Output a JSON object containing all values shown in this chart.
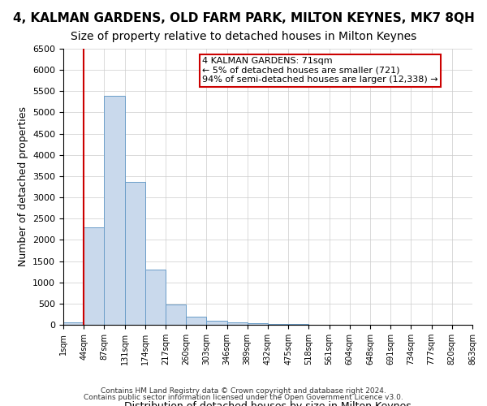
{
  "title": "4, KALMAN GARDENS, OLD FARM PARK, MILTON KEYNES, MK7 8QH",
  "subtitle": "Size of property relative to detached houses in Milton Keynes",
  "xlabel": "Distribution of detached houses by size in Milton Keynes",
  "ylabel": "Number of detached properties",
  "bin_labels": [
    "1sqm",
    "44sqm",
    "87sqm",
    "131sqm",
    "174sqm",
    "217sqm",
    "260sqm",
    "303sqm",
    "346sqm",
    "389sqm",
    "432sqm",
    "475sqm",
    "518sqm",
    "561sqm",
    "604sqm",
    "648sqm",
    "691sqm",
    "734sqm",
    "777sqm",
    "820sqm",
    "863sqm"
  ],
  "bar_values": [
    60,
    2300,
    5400,
    3370,
    1300,
    480,
    190,
    90,
    60,
    40,
    10,
    10,
    5,
    2,
    1,
    1,
    0,
    0,
    0,
    0
  ],
  "bar_color": "#c9d9ec",
  "bar_edge_color": "#6a9dc8",
  "red_line_x": 1,
  "annotation_text": "4 KALMAN GARDENS: 71sqm\n← 5% of detached houses are smaller (721)\n94% of semi-detached houses are larger (12,338) →",
  "annotation_box_color": "#ffffff",
  "annotation_box_edge": "#cc0000",
  "red_line_color": "#cc0000",
  "ylim": [
    0,
    6500
  ],
  "yticks": [
    0,
    500,
    1000,
    1500,
    2000,
    2500,
    3000,
    3500,
    4000,
    4500,
    5000,
    5500,
    6000,
    6500
  ],
  "footer_line1": "Contains HM Land Registry data © Crown copyright and database right 2024.",
  "footer_line2": "Contains public sector information licensed under the Open Government Licence v3.0.",
  "title_fontsize": 11,
  "subtitle_fontsize": 10,
  "bg_color": "#ffffff",
  "grid_color": "#cccccc"
}
